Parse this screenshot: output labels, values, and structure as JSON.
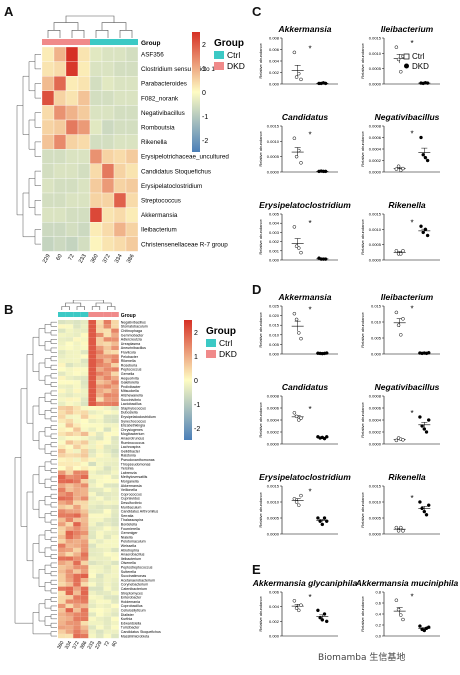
{
  "panel_labels": {
    "A": "A",
    "B": "B",
    "C": "C",
    "D": "D",
    "E": "E"
  },
  "legend": {
    "title": "Group",
    "ctrl": "Ctrl",
    "dkd": "DKD"
  },
  "colors": {
    "ctrl": "#3cc9c5",
    "dkd": "#f08a8a",
    "hi": "#d63025",
    "mid": "#fefcc3",
    "lo": "#4a7fb8"
  },
  "colorbar_ticks": [
    "2",
    "1",
    "0",
    "-1",
    "-2"
  ],
  "panel_a": {
    "group_row_label": "Group",
    "rows": [
      "ASF356",
      "Clostridium sensu stricto 1",
      "Parabacteroides",
      "F082_norank",
      "Negativibacillus",
      "Romboutsia",
      "Rikenella",
      "Erysipelotrichaceae_uncultured",
      "Candidatus Stoquefichus",
      "Erysipelatoclostridium",
      "Streptococcus",
      "Akkermansia",
      "Ileibacterium",
      "Christensenellaceae R-7 group"
    ],
    "cols": [
      "229",
      "60",
      "72",
      "233",
      "360",
      "372",
      "334",
      "386"
    ],
    "groups": [
      "dkd",
      "dkd",
      "dkd",
      "dkd",
      "ctrl",
      "ctrl",
      "ctrl",
      "ctrl"
    ],
    "values": [
      [
        0.2,
        0.9,
        2.6,
        0.3,
        -0.4,
        -0.5,
        -0.5,
        -0.6
      ],
      [
        0.3,
        0.4,
        2.4,
        0.2,
        -0.5,
        -0.5,
        -0.6,
        -0.6
      ],
      [
        0.8,
        1.8,
        0.2,
        0.3,
        -0.6,
        -0.4,
        -0.5,
        -0.5
      ],
      [
        2.1,
        0.5,
        0.3,
        0.7,
        -0.6,
        -0.6,
        -0.5,
        -0.5
      ],
      [
        0.4,
        1.3,
        0.9,
        0.6,
        -0.5,
        -0.5,
        -0.6,
        -0.6
      ],
      [
        0.5,
        0.6,
        1.6,
        1.2,
        -0.4,
        -0.7,
        -0.6,
        -0.6
      ],
      [
        0.7,
        1.4,
        0.5,
        0.4,
        -0.6,
        -0.6,
        -0.5,
        -0.5
      ],
      [
        -0.6,
        -0.6,
        -0.5,
        -0.5,
        1.3,
        0.5,
        0.4,
        0.6
      ],
      [
        -0.6,
        -0.5,
        -0.5,
        -0.6,
        0.4,
        1.6,
        0.5,
        0.3
      ],
      [
        -0.5,
        -0.6,
        -0.6,
        -0.5,
        0.6,
        1.2,
        0.5,
        0.6
      ],
      [
        -0.6,
        -0.6,
        -0.5,
        -0.5,
        0.5,
        0.5,
        1.9,
        0.4
      ],
      [
        -0.5,
        -0.5,
        -0.6,
        -0.6,
        2.2,
        0.3,
        0.4,
        0.2
      ],
      [
        -0.7,
        -0.7,
        -0.6,
        -0.7,
        0.2,
        0.4,
        0.9,
        0.5
      ],
      [
        -0.8,
        -0.7,
        -0.8,
        -0.6,
        0.1,
        0.3,
        0.4,
        0.6
      ]
    ]
  },
  "panel_b": {
    "group_row_label": "Group",
    "rows": [
      "Negativibacillus",
      "Stomatobaculum",
      "Chitinophaga",
      "Gemmobacter",
      "Adlercreutzia",
      "Ureaplasma",
      "Aneurinibacillus",
      "Fluviicola",
      "Pelobacter",
      "Rikenella",
      "Roseburia",
      "Peptococcus",
      "Gemella",
      "Aequorivita",
      "Gaiellorella",
      "Prolixibacter",
      "Mitsuokella",
      "Alishewanella",
      "Succinivibrio",
      "Lactobacillus",
      "Staphylococcus",
      "Dubosiella",
      "Erysipelatoclostridium",
      "Synechococcus",
      "Elizabethkingia",
      "Chrysiogenes",
      "Mogibacterium",
      "Anaerotruncus",
      "Ruminococcus",
      "Lachnospira",
      "Gelidibacter",
      "Ralstonia",
      "Pseudoxanthomonas",
      "Thiopseudomonas",
      "Yersinia",
      "Labrenzia",
      "Methyloversatilis",
      "Morganella",
      "Akkermansia",
      "Veillonella",
      "Coprococcus",
      "Cupriavidus",
      "Desulfovibrio",
      "Muribaculum",
      "Candidatus Arthromitus",
      "Serratia",
      "Thalassospira",
      "Bordetella",
      "Fournierella",
      "Gemmiger",
      "Nialella",
      "Pelotomaculum",
      "Weissella",
      "Abiotrophia",
      "Anaerobacillus",
      "Ileibacterium",
      "Olsenella",
      "Peptostreptococcus",
      "Sutterella",
      "Succinatimonas",
      "Acetanaerobacterium",
      "Corynebacterium",
      "Catenibacterium",
      "Streptomyces",
      "Enterobacter",
      "Holdemania",
      "Coprobacillus",
      "Cellulosilyticum",
      "Dialister",
      "Kurthia",
      "Edwardsiella",
      "Turicibacter",
      "Candidatus Stoquefichus",
      "Massiliimicrobiota"
    ],
    "cols": [
      "360",
      "334",
      "372",
      "386",
      "233",
      "229",
      "72",
      "60"
    ],
    "groups": [
      "ctrl",
      "ctrl",
      "ctrl",
      "ctrl",
      "dkd",
      "dkd",
      "dkd",
      "dkd"
    ]
  },
  "panel_c": [
    {
      "title": "Akkermansia",
      "ylabel": "Relative abundance",
      "ylim": [
        0,
        0.008
      ],
      "ticks": [
        "0.008",
        "0.006",
        "0.004",
        "0.002",
        "0.000"
      ],
      "ctrl": [
        0.0055,
        0.0012,
        0.0018,
        0.0008
      ],
      "dkd": [
        0.0001,
        0.0001,
        0.0002,
        0.0001
      ],
      "sig": "*"
    },
    {
      "title": "Ileibacterium",
      "ylabel": "Relative abundance",
      "ylim": [
        0,
        0.0015
      ],
      "ticks": [
        "0.0015",
        "0.0010",
        "0.0005",
        "0.0000"
      ],
      "ctrl": [
        0.0012,
        0.0008,
        0.0004,
        0.0009
      ],
      "dkd": [
        3e-05,
        2e-05,
        4e-05,
        3e-05
      ],
      "sig": "*"
    },
    {
      "title": "Candidatus",
      "ylabel": "Relative abundance",
      "ylim": [
        0,
        0.0015
      ],
      "ticks": [
        "0.0015",
        "0.0010",
        "0.0005",
        "0.0000"
      ],
      "ctrl": [
        0.0011,
        0.0005,
        0.0007,
        0.0003
      ],
      "dkd": [
        2e-05,
        3e-05,
        2e-05,
        2e-05
      ],
      "sig": "*"
    },
    {
      "title": "Negativibacillus",
      "ylabel": "Relative abundance",
      "ylim": [
        0,
        0.0008
      ],
      "ticks": [
        "0.0008",
        "0.0006",
        "0.0004",
        "0.0002",
        "0.0000"
      ],
      "ctrl": [
        5e-05,
        0.0001,
        3e-05,
        6e-05
      ],
      "dkd": [
        0.0006,
        0.0003,
        0.00025,
        0.0002
      ],
      "sig": "*"
    },
    {
      "title": "Erysipelatoclostridium",
      "ylabel": "Relative abundance",
      "ylim": [
        0,
        0.005
      ],
      "ticks": [
        "0.005",
        "0.004",
        "0.003",
        "0.002",
        "0.001",
        "0.000"
      ],
      "ctrl": [
        0.0036,
        0.0015,
        0.0013,
        0.0008
      ],
      "dkd": [
        0.0002,
        0.0001,
        0.0001,
        0.0001
      ],
      "sig": "*"
    },
    {
      "title": "Rikenella",
      "ylabel": "Relative abundance",
      "ylim": [
        0,
        0.0015
      ],
      "ticks": [
        "0.0015",
        "0.0010",
        "0.0005",
        "0.0000"
      ],
      "ctrl": [
        0.0003,
        0.0002,
        0.0002,
        0.0003
      ],
      "dkd": [
        0.0011,
        0.0009,
        0.001,
        0.0008
      ],
      "sig": "*"
    }
  ],
  "panel_d": [
    {
      "title": "Akkermansia",
      "ylabel": "Relative abundance",
      "ylim": [
        0,
        0.025
      ],
      "ticks": [
        "0.025",
        "0.020",
        "0.015",
        "0.010",
        "0.005",
        "0.000"
      ],
      "ctrl": [
        0.021,
        0.018,
        0.011,
        0.008
      ],
      "dkd": [
        0.0004,
        0.0003,
        0.0002,
        0.0003,
        0.0005
      ],
      "sig": "*"
    },
    {
      "title": "Ileibacterium",
      "ylabel": "Relative abundance",
      "ylim": [
        0,
        0.015
      ],
      "ticks": [
        "0.015",
        "0.010",
        "0.005",
        "0.000"
      ],
      "ctrl": [
        0.013,
        0.009,
        0.006,
        0.011
      ],
      "dkd": [
        0.0003,
        0.0002,
        0.0003,
        0.0002,
        0.0004
      ],
      "sig": "*"
    },
    {
      "title": "Candidatus",
      "ylabel": "Relative abundance",
      "ylim": [
        0,
        0.0008
      ],
      "ticks": [
        "0.0008",
        "0.0006",
        "0.0004",
        "0.0002",
        "0.0000"
      ],
      "ctrl": [
        0.00052,
        0.00046,
        0.0004,
        0.00043
      ],
      "dkd": [
        0.00012,
        0.0001,
        0.00011,
        9e-05,
        0.00012
      ],
      "sig": "*"
    },
    {
      "title": "Negativibacillus",
      "ylabel": "Relative abundance",
      "ylim": [
        0,
        0.0008
      ],
      "ticks": [
        "0.0008",
        "0.0006",
        "0.0004",
        "0.0002",
        "0.0000"
      ],
      "ctrl": [
        6e-05,
        0.0001,
        8e-05,
        7e-05
      ],
      "dkd": [
        0.00045,
        0.0003,
        0.00025,
        0.0002,
        0.0004
      ],
      "sig": "*"
    },
    {
      "title": "Erysipelatoclostridium",
      "ylabel": "Relative abundance",
      "ylim": [
        0,
        0.0015
      ],
      "ticks": [
        "0.0015",
        "0.0010",
        "0.0005",
        "0.0000"
      ],
      "ctrl": [
        0.0011,
        0.001,
        0.0009,
        0.0012
      ],
      "dkd": [
        0.0005,
        0.0004,
        0.0003,
        0.0005,
        0.0004
      ],
      "sig": "*"
    },
    {
      "title": "Rikenella",
      "ylabel": "Relative abundance",
      "ylim": [
        0,
        0.0015
      ],
      "ticks": [
        "0.0015",
        "0.0010",
        "0.0005",
        "0.0000"
      ],
      "ctrl": [
        0.0002,
        0.0001,
        0.0002,
        0.0001
      ],
      "dkd": [
        0.001,
        0.0008,
        0.0007,
        0.0006,
        0.0009
      ],
      "sig": "*"
    }
  ],
  "panel_e": [
    {
      "title": "Akkermansia glycaniphila",
      "ylabel": "Relative abundance",
      "ylim": [
        0,
        0.006
      ],
      "ticks": [
        "0.006",
        "0.004",
        "0.002",
        "0.000"
      ],
      "ctrl": [
        0.0048,
        0.0038,
        0.0035,
        0.0042
      ],
      "dkd": [
        0.0035,
        0.0025,
        0.0022,
        0.003,
        0.002
      ],
      "sig": "*"
    },
    {
      "title": "Akkermansia muciniphila",
      "ylabel": "Relative abundance",
      "ylim": [
        0,
        0.8
      ],
      "ticks": [
        "0.8",
        "0.6",
        "0.4",
        "0.2",
        "0.0"
      ],
      "ctrl": [
        0.65,
        0.48,
        0.38,
        0.3
      ],
      "dkd": [
        0.18,
        0.12,
        0.1,
        0.14,
        0.16
      ],
      "sig": "*"
    }
  ],
  "watermark": "Biomamba 生信基地"
}
